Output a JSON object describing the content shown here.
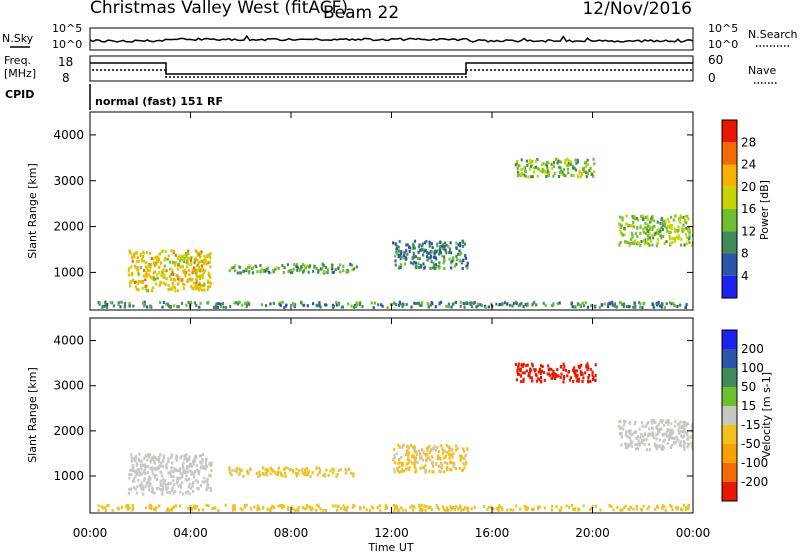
{
  "header": {
    "station": "Christmas Valley West (fitACF)",
    "beam": "Beam 22",
    "date": "12/Nov/2016"
  },
  "top_panels": {
    "nsky_label": "N.Sky",
    "nsearch_label": "N.Search",
    "noise_ticks": [
      "10^5",
      "10^0"
    ],
    "freq_label_line1": "Freq.",
    "freq_label_line2": "[MHz]",
    "freq_ticks": [
      "18",
      "8"
    ],
    "nave_label": "Nave",
    "nave_ticks": [
      "60",
      "0"
    ],
    "cpid_label": "CPID",
    "cpid_text": "normal (fast) 151 RF"
  },
  "colors": {
    "power": [
      "#1b22ee",
      "#2a55a8",
      "#3f8a58",
      "#6cc030",
      "#c8d400",
      "#f7b200",
      "#f46a00",
      "#e81800"
    ],
    "velocity": [
      "#e81800",
      "#f46a00",
      "#f4a300",
      "#f3c020",
      "#c8c8c0",
      "#6cc030",
      "#3f8a58",
      "#2a55a8",
      "#1b22ee"
    ]
  },
  "time_axis": {
    "label": "Time UT",
    "ticks": [
      "00:00",
      "04:00",
      "08:00",
      "12:00",
      "16:00",
      "20:00",
      "00:00"
    ]
  },
  "chart_data": [
    {
      "type": "heatmap",
      "name": "power-panel",
      "ylabel": "Slant Range [km]",
      "x_range_hours": [
        0,
        24
      ],
      "ylim": [
        180,
        4500
      ],
      "yticks": [
        1000,
        2000,
        3000,
        4000
      ],
      "colorbar": {
        "label": "Power [dB]",
        "ticks": [
          4,
          8,
          12,
          16,
          20,
          24,
          28
        ],
        "range": [
          0,
          30
        ]
      },
      "features": [
        {
          "name": "near-range-echo",
          "t": [
            0.3,
            23.8
          ],
          "r": [
            200,
            320
          ],
          "value": 14
        },
        {
          "name": "early-ionospheric-echo",
          "t": [
            1.5,
            4.8
          ],
          "r": [
            560,
            1450
          ],
          "value": 24
        },
        {
          "name": "scatter-0530-1030",
          "t": [
            5.5,
            10.6
          ],
          "r": [
            950,
            1150
          ],
          "value": 16
        },
        {
          "name": "scatter-1200-1500",
          "t": [
            12.0,
            15.0
          ],
          "r": [
            1050,
            1650
          ],
          "value": 13
        },
        {
          "name": "scatter-1700-2000",
          "t": [
            16.9,
            20.1
          ],
          "r": [
            3050,
            3450
          ],
          "value": 18
        },
        {
          "name": "scatter-2100-2400",
          "t": [
            21.0,
            24.0
          ],
          "r": [
            1550,
            2200
          ],
          "value": 19
        }
      ]
    },
    {
      "type": "heatmap",
      "name": "velocity-panel",
      "ylabel": "Slant Range [km]",
      "x_range_hours": [
        0,
        24
      ],
      "ylim": [
        180,
        4500
      ],
      "yticks": [
        1000,
        2000,
        3000,
        4000
      ],
      "colorbar": {
        "label": "Velocity [m s-1]",
        "ticks": [
          -200,
          -100,
          -50,
          -15,
          15,
          50,
          100,
          200
        ],
        "range": [
          -250,
          250
        ]
      },
      "features": [
        {
          "name": "near-range-echo",
          "t": [
            0.3,
            23.8
          ],
          "r": [
            200,
            320
          ],
          "value": -30
        },
        {
          "name": "early-echo",
          "t": [
            1.5,
            4.8
          ],
          "r": [
            560,
            1450
          ],
          "value": 0
        },
        {
          "name": "scatter-0530-1030",
          "t": [
            5.5,
            10.6
          ],
          "r": [
            950,
            1150
          ],
          "value": -25
        },
        {
          "name": "scatter-1200-1500",
          "t": [
            12.0,
            15.0
          ],
          "r": [
            1050,
            1650
          ],
          "value": -20
        },
        {
          "name": "scatter-1700-2000",
          "t": [
            16.9,
            20.1
          ],
          "r": [
            3050,
            3450
          ],
          "value": -230
        },
        {
          "name": "scatter-2100-2400",
          "t": [
            21.0,
            24.0
          ],
          "r": [
            1550,
            2200
          ],
          "value": 0
        }
      ]
    }
  ]
}
